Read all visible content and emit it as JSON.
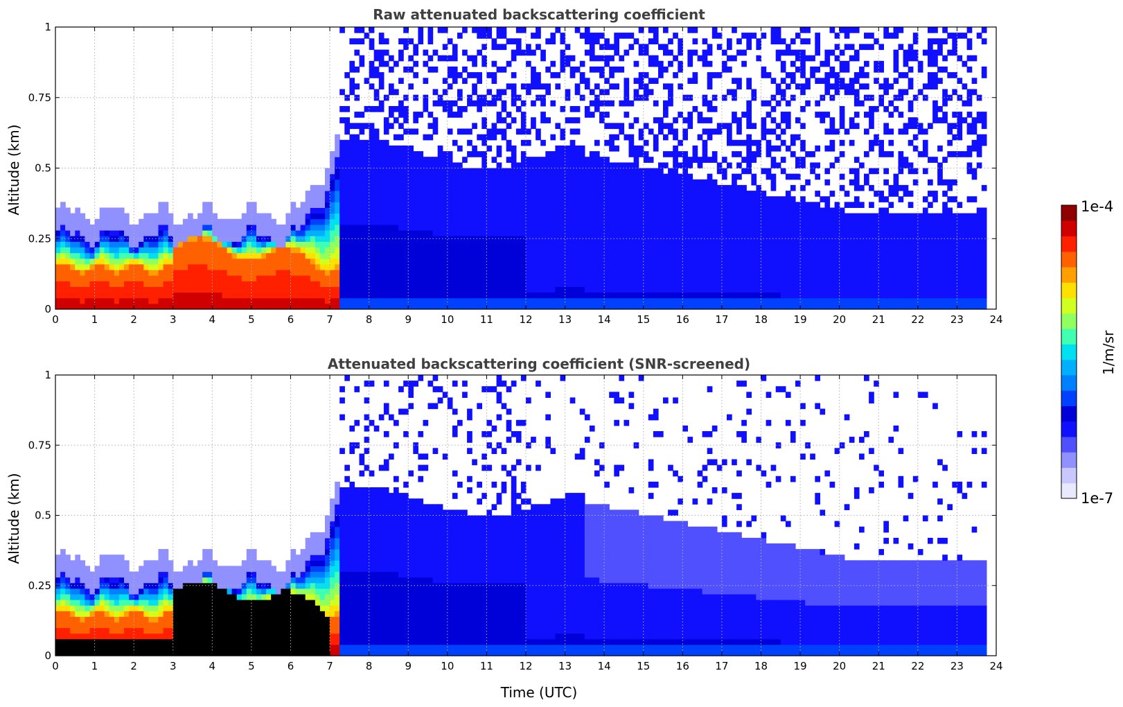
{
  "chart_data": [
    {
      "type": "heatmap",
      "title": "Raw attenuated backscattering coefficient",
      "xlabel": "",
      "ylabel": "Altitude (km)",
      "xlim": [
        0,
        24
      ],
      "ylim": [
        0,
        1
      ],
      "x_ticks": [
        "0",
        "1",
        "2",
        "3",
        "4",
        "5",
        "6",
        "7",
        "8",
        "9",
        "10",
        "11",
        "12",
        "13",
        "14",
        "15",
        "16",
        "17",
        "18",
        "19",
        "20",
        "21",
        "22",
        "23",
        "24"
      ],
      "y_ticks": [
        "0",
        "0.25",
        "0.5",
        "0.75",
        "1"
      ],
      "grid": true,
      "colorscale": "jet",
      "color_range": [
        "1e-7",
        "1e-4"
      ],
      "data_end_hour": 23.75,
      "features": [
        {
          "feature": "strong aerosol layer (red, ~1e-4)",
          "time_range": [
            0,
            7.2
          ],
          "altitude_km": [
            0,
            0.15
          ]
        },
        {
          "feature": "elevated dense layer",
          "time_range": [
            3,
            6.8
          ],
          "altitude_km": [
            0.05,
            0.27
          ]
        },
        {
          "feature": "noise above layer",
          "time_range": [
            7,
            23.75
          ],
          "altitude_km": [
            0.35,
            1.0
          ]
        },
        {
          "feature": "boundary layer (blue, ~1e-6)",
          "time_range": [
            7.2,
            23.75
          ],
          "altitude_km": [
            0,
            0.4
          ]
        }
      ]
    },
    {
      "type": "heatmap",
      "title": "Attenuated backscattering coefficient (SNR-screened)",
      "xlabel": "Time (UTC)",
      "ylabel": "Altitude (km)",
      "xlim": [
        0,
        24
      ],
      "ylim": [
        0,
        1
      ],
      "x_ticks": [
        "0",
        "1",
        "2",
        "3",
        "4",
        "5",
        "6",
        "7",
        "8",
        "9",
        "10",
        "11",
        "12",
        "13",
        "14",
        "15",
        "16",
        "17",
        "18",
        "19",
        "20",
        "21",
        "22",
        "23",
        "24"
      ],
      "y_ticks": [
        "0",
        "0.25",
        "0.5",
        "0.75",
        "1"
      ],
      "grid": true,
      "colorscale": "jet",
      "color_range": [
        "1e-7",
        "1e-4"
      ],
      "data_end_hour": 23.75,
      "features": [
        {
          "feature": "saturated layer (black)",
          "time_range": [
            3,
            7
          ],
          "altitude_km": [
            0,
            0.27
          ]
        },
        {
          "feature": "boundary layer (blue)",
          "time_range": [
            7.2,
            23.75
          ],
          "altitude_km": [
            0,
            0.68
          ]
        },
        {
          "feature": "screened sparse pixels",
          "time_range": [
            7.5,
            23.5
          ],
          "altitude_km": [
            0.65,
            1.0
          ]
        }
      ]
    }
  ],
  "colorbar": {
    "label": "1/m/sr",
    "max_label": "1e-4",
    "min_label": "1e-7",
    "colors": [
      "#e8e8ff",
      "#c8c8ff",
      "#9090ff",
      "#5050ff",
      "#1010ff",
      "#0000d8",
      "#0040ff",
      "#0080ff",
      "#00b0ff",
      "#00e0f0",
      "#40ffb0",
      "#90ff60",
      "#d0ff20",
      "#ffe000",
      "#ffa000",
      "#ff6000",
      "#ff2000",
      "#d00000",
      "#900000"
    ]
  }
}
